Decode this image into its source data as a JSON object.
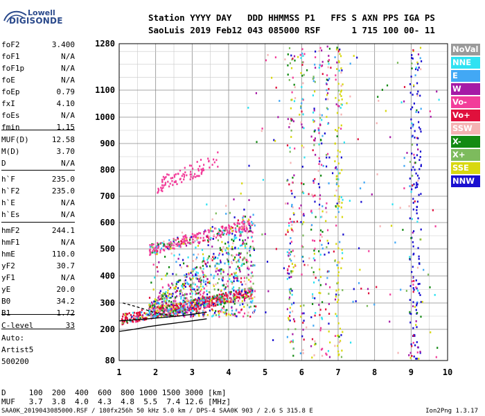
{
  "logo": {
    "line1": "Lowell",
    "line2": "DIGISONDE"
  },
  "header": {
    "row1": "Station YYYY DAY   DDD HHMMSS P1   FFS S AXN PPS IGA PS",
    "row2": "SaoLuis 2019 Feb12 043 085000 RSF      1 715 100 00- 11"
  },
  "params": [
    {
      "label": "foF2",
      "value": "3.400"
    },
    {
      "label": "foF1",
      "value": "N/A"
    },
    {
      "label": "foF1p",
      "value": "N/A"
    },
    {
      "label": "foE",
      "value": "N/A"
    },
    {
      "label": "foEp",
      "value": "0.79"
    },
    {
      "label": "fxI",
      "value": "4.10"
    },
    {
      "label": "foEs",
      "value": "N/A"
    },
    {
      "label": "fmin",
      "value": "1.15"
    },
    {
      "label": "MUF(D)",
      "value": "12.58"
    },
    {
      "label": "M(D)",
      "value": "3.70"
    },
    {
      "label": "D",
      "value": "N/A"
    },
    {
      "label": "h`F",
      "value": "235.0"
    },
    {
      "label": "h`F2",
      "value": "235.0"
    },
    {
      "label": "h`E",
      "value": "N/A"
    },
    {
      "label": "h`Es",
      "value": "N/A"
    },
    {
      "label": "hmF2",
      "value": "244.1"
    },
    {
      "label": "hmF1",
      "value": "N/A"
    },
    {
      "label": "hmE",
      "value": "110.0"
    },
    {
      "label": "yF2",
      "value": "30.7"
    },
    {
      "label": "yF1",
      "value": "N/A"
    },
    {
      "label": "yE",
      "value": "20.0"
    },
    {
      "label": "B0",
      "value": "34.2"
    },
    {
      "label": "B1",
      "value": "1.72"
    },
    {
      "label": "C-level",
      "value": "33"
    }
  ],
  "auto": {
    "label": "Auto:",
    "artist": "Artist5",
    "version": "500200"
  },
  "legend": [
    {
      "label": "NoVal",
      "color": "#9a9a9a"
    },
    {
      "label": "NNE",
      "color": "#2fe2f2"
    },
    {
      "label": "E",
      "color": "#42a8f5"
    },
    {
      "label": "W",
      "color": "#a61aa6"
    },
    {
      "label": "Vo-",
      "color": "#f23d9a"
    },
    {
      "label": "Vo+",
      "color": "#e0103c"
    },
    {
      "label": "SSW",
      "color": "#f5b3b3"
    },
    {
      "label": "X-",
      "color": "#138a13"
    },
    {
      "label": "X+",
      "color": "#7dbb5d"
    },
    {
      "label": "SSE",
      "color": "#d8d810"
    },
    {
      "label": "NNW",
      "color": "#1a10d0"
    }
  ],
  "muf_table": {
    "d_row": "D     100  200  400  600  800 1000 1500 3000 [km]",
    "muf_row": "MUF   3.7  3.8  4.0  4.3  4.8  5.5  7.4 12.6 [MHz]"
  },
  "footer": {
    "left": "SAA0K_2019043085000.RSF / 180fx256h 50 kHz 5.0 km / DPS-4 SAA0K 903 / 2.6 S 315.8 E",
    "right": "Ion2Png 1.3.17"
  },
  "chart_data": {
    "type": "scatter",
    "title": "",
    "xlabel": "",
    "ylabel": "",
    "xlim": [
      1,
      10
    ],
    "ylim": [
      80,
      1280
    ],
    "x_ticks": [
      1,
      2,
      3,
      4,
      5,
      6,
      7,
      8,
      9,
      10
    ],
    "y_ticks": [
      80,
      200,
      300,
      400,
      500,
      600,
      700,
      800,
      900,
      1000,
      1100,
      1280
    ],
    "grid": true,
    "legend_placement": "right",
    "series": [
      {
        "name": "Vo+",
        "clusters": [
          [
            1.2,
            245
          ],
          [
            1.5,
            250
          ],
          [
            1.8,
            255
          ],
          [
            2.0,
            260
          ],
          [
            2.3,
            265
          ],
          [
            2.6,
            275
          ],
          [
            2.9,
            285
          ],
          [
            3.2,
            295
          ],
          [
            3.5,
            305
          ],
          [
            3.8,
            315
          ],
          [
            4.1,
            320
          ],
          [
            4.4,
            330
          ]
        ]
      },
      {
        "name": "W",
        "clusters": [
          [
            5.7,
            1270
          ],
          [
            6.3,
            1250
          ],
          [
            6.5,
            1200
          ],
          [
            6.0,
            900
          ],
          [
            6.4,
            700
          ],
          [
            5.8,
            500
          ],
          [
            6.2,
            300
          ],
          [
            7.0,
            450
          ],
          [
            9.1,
            700
          ],
          [
            9.2,
            400
          ]
        ]
      },
      {
        "name": "NNW",
        "clusters": [
          [
            9.0,
            1250
          ],
          [
            9.1,
            1050
          ],
          [
            9.2,
            930
          ],
          [
            9.0,
            700
          ],
          [
            9.1,
            500
          ],
          [
            9.2,
            380
          ],
          [
            9.0,
            300
          ],
          [
            5.7,
            550
          ],
          [
            6.0,
            400
          ]
        ]
      },
      {
        "name": "SSE",
        "clusters": [
          [
            7.0,
            1130
          ],
          [
            7.0,
            1000
          ],
          [
            6.9,
            900
          ],
          [
            7.1,
            820
          ],
          [
            7.0,
            700
          ],
          [
            6.9,
            500
          ],
          [
            7.0,
            380
          ],
          [
            5.5,
            220
          ],
          [
            3.5,
            450
          ],
          [
            3.7,
            380
          ]
        ]
      },
      {
        "name": "Vo-",
        "clusters": [
          [
            2.0,
            510
          ],
          [
            2.4,
            520
          ],
          [
            2.7,
            540
          ],
          [
            3.0,
            560
          ],
          [
            3.2,
            580
          ],
          [
            3.6,
            600
          ],
          [
            4.0,
            610
          ],
          [
            4.4,
            600
          ]
        ]
      }
    ]
  }
}
